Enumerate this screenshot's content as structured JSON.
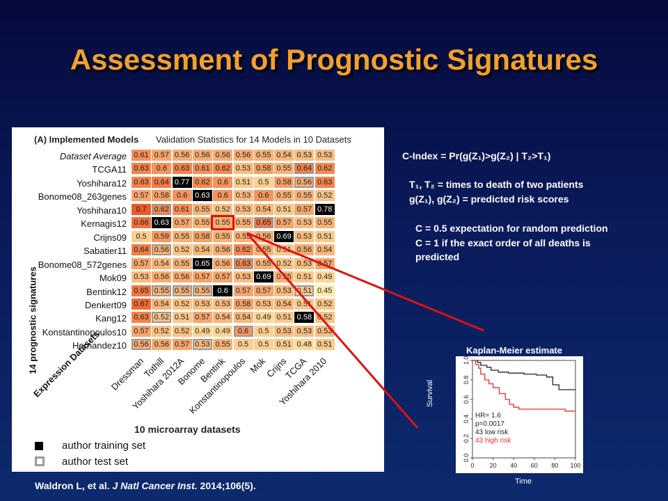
{
  "slide": {
    "title": "Assessment of Prognostic Signatures",
    "citation_author": "Waldron L, et al. ",
    "citation_journal": "J Natl Cancer Inst.",
    "citation_rest": " 2014;106(5)."
  },
  "heatmap": {
    "heading": "(A) Implemented Models",
    "subheading": "Validation Statistics for 14 Models in 10 Datasets",
    "ylabel": "14 prognostic signatures",
    "xlabel_group": "Expression Datasets",
    "xlabel": "10 microarray datasets",
    "legend_training": "author training set",
    "legend_test": "author test set",
    "columns": [
      "Dressman",
      "Tothill",
      "Yoshihara 2012A",
      "Bonome",
      "Bentink",
      "Konstantinopoulos",
      "Mok",
      "Crijns",
      "TCGA",
      "Yoshihara 2010"
    ],
    "rows": [
      {
        "label": "Dataset Average",
        "avg": true,
        "values": [
          "0.61",
          "0.57",
          "0.56",
          "0.56",
          "0.56",
          "0.56",
          "0.55",
          "0.54",
          "0.53",
          "0.53"
        ]
      },
      {
        "label": "TCGA11",
        "values": [
          "0.63",
          "0.6",
          "0.63",
          "0.61",
          "0.62",
          "0.53",
          "0.58",
          "0.55",
          "0.64",
          "0.62"
        ]
      },
      {
        "label": "Yoshihara12",
        "values": [
          "0.63",
          "0.64",
          "0.77",
          "0.62",
          "0.6",
          "0.51",
          "0.5",
          "0.58",
          "0.56",
          "0.63"
        ]
      },
      {
        "label": "Bonome08_263genes",
        "values": [
          "0.57",
          "0.58",
          "0.6",
          "0.63",
          "0.6",
          "0.53",
          "0.6",
          "0.55",
          "0.55",
          "0.52"
        ]
      },
      {
        "label": "Yoshihara10",
        "values": [
          "0.7",
          "0.62",
          "0.61",
          "0.55",
          "0.52",
          "0.53",
          "0.54",
          "0.51",
          "0.57",
          "0.78"
        ]
      },
      {
        "label": "Kernagis12",
        "values": [
          "0.66",
          "0.63",
          "0.57",
          "0.55",
          "0.55",
          "0.55",
          "0.65",
          "0.57",
          "0.53",
          "0.55"
        ]
      },
      {
        "label": "Crijns09",
        "values": [
          "0.5",
          "0.59",
          "0.55",
          "0.58",
          "0.55",
          "0.55",
          "0.56",
          "0.69",
          "0.53",
          "0.51"
        ]
      },
      {
        "label": "Sabatier11",
        "values": [
          "0.64",
          "0.56",
          "0.52",
          "0.54",
          "0.56",
          "0.62",
          "0.55",
          "0.51",
          "0.56",
          "0.54"
        ]
      },
      {
        "label": "Bonome08_572genes",
        "values": [
          "0.57",
          "0.54",
          "0.55",
          "0.65",
          "0.56",
          "0.63",
          "0.55",
          "0.52",
          "0.53",
          "0.57"
        ]
      },
      {
        "label": "Mok09",
        "values": [
          "0.53",
          "0.56",
          "0.56",
          "0.57",
          "0.57",
          "0.53",
          "0.69",
          "0.55",
          "0.51",
          "0.49"
        ]
      },
      {
        "label": "Bentink12",
        "values": [
          "0.65",
          "0.55",
          "0.55",
          "0.55",
          "0.6",
          "0.57",
          "0.57",
          "0.53",
          "0.51",
          "0.45"
        ]
      },
      {
        "label": "Denkert09",
        "values": [
          "0.67",
          "0.54",
          "0.52",
          "0.53",
          "0.53",
          "0.58",
          "0.53",
          "0.54",
          "0.51",
          "0.52"
        ]
      },
      {
        "label": "Kang12",
        "values": [
          "0.63",
          "0.52",
          "0.51",
          "0.57",
          "0.54",
          "0.54",
          "0.49",
          "0.51",
          "0.58",
          "0.52"
        ]
      },
      {
        "label": "Konstantinopoulos10",
        "values": [
          "0.57",
          "0.52",
          "0.52",
          "0.49",
          "0.49",
          "0.6",
          "0.5",
          "0.53",
          "0.53",
          "0.53"
        ]
      },
      {
        "label": "Hernandez10",
        "values": [
          "0.56",
          "0.56",
          "0.57",
          "0.53",
          "0.55",
          "0.5",
          "0.5",
          "0.51",
          "0.48",
          "0.51"
        ]
      }
    ],
    "training_cells": [
      [
        2,
        2
      ],
      [
        3,
        3
      ],
      [
        4,
        9
      ],
      [
        5,
        1
      ],
      [
        6,
        7
      ],
      [
        8,
        3
      ],
      [
        9,
        6
      ],
      [
        10,
        4
      ],
      [
        12,
        8
      ]
    ],
    "test_cells": [
      [
        1,
        8
      ],
      [
        2,
        8
      ],
      [
        4,
        1
      ],
      [
        5,
        6
      ],
      [
        7,
        1
      ],
      [
        8,
        5
      ],
      [
        10,
        1
      ],
      [
        10,
        2
      ],
      [
        10,
        3
      ],
      [
        10,
        8
      ],
      [
        12,
        1
      ],
      [
        13,
        5
      ],
      [
        14,
        0
      ],
      [
        14,
        3
      ]
    ],
    "highlight_cell": [
      5,
      4
    ]
  },
  "cindex": {
    "line1": "C-Index  = Pr(g(Z₁)>g(Z₂)  | T₂>T₁)",
    "line2": "T₁, T₂ = times  to death  of two patients",
    "line3": "g(Z₁),  g(Z₂) = predicted  risk scores",
    "line4": "C = 0.5 expectation  for random  prediction",
    "line5": "C = 1 if the exact order of all deaths  is",
    "line6": "predicted"
  },
  "km": {
    "title": "Kaplan-Meier estimate",
    "ylabel": "Survival",
    "xlabel": "Time",
    "hr": "HR= 1.6",
    "p": "p=0.0017",
    "low": "43 low risk",
    "high": "43 high risk",
    "xticks": [
      "0",
      "20",
      "40",
      "60",
      "80",
      "100"
    ],
    "yticks": [
      "0.0",
      "0.2",
      "0.4",
      "0.6",
      "0.8",
      "1.0"
    ],
    "low_color": "#222222",
    "high_color": "#e0302a"
  }
}
